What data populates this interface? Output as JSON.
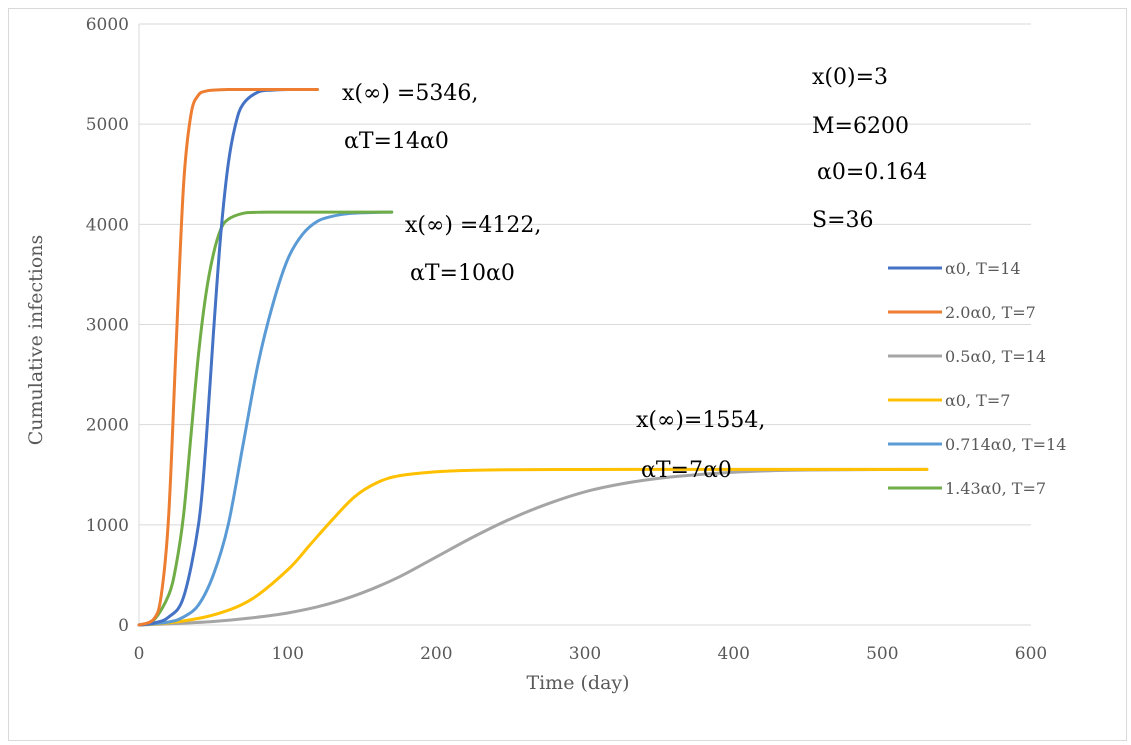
{
  "chart_data": {
    "type": "line",
    "title": "",
    "xlabel": "Time (day)",
    "ylabel": "Cumulative infections",
    "xlim": [
      0,
      600
    ],
    "ylim": [
      0,
      6000
    ],
    "x_ticks": [
      0,
      100,
      200,
      300,
      400,
      500,
      600
    ],
    "y_ticks": [
      0,
      1000,
      2000,
      3000,
      4000,
      5000,
      6000
    ],
    "grid": "horizontal",
    "legend_position": "right",
    "series": [
      {
        "name": "α0, T=14",
        "color": "#4472c4",
        "x": [
          0,
          10,
          20,
          30,
          40,
          45,
          50,
          55,
          60,
          65,
          70,
          80,
          90,
          100,
          120
        ],
        "y": [
          0,
          20,
          80,
          280,
          1000,
          1800,
          2900,
          3900,
          4600,
          5000,
          5200,
          5320,
          5340,
          5346,
          5346
        ]
      },
      {
        "name": "2.0α0, T=7",
        "color": "#ed7d31",
        "x": [
          0,
          10,
          15,
          20,
          25,
          30,
          35,
          40,
          45,
          50,
          60,
          80,
          120
        ],
        "y": [
          0,
          60,
          300,
          1100,
          2800,
          4400,
          5100,
          5290,
          5330,
          5340,
          5346,
          5346,
          5346
        ]
      },
      {
        "name": "0.5α0, T=14",
        "color": "#a5a5a5",
        "x": [
          0,
          25,
          50,
          75,
          100,
          125,
          150,
          175,
          200,
          225,
          250,
          275,
          300,
          325,
          350,
          375,
          400,
          425,
          450,
          500,
          530
        ],
        "y": [
          0,
          15,
          35,
          70,
          120,
          200,
          320,
          480,
          680,
          880,
          1060,
          1210,
          1330,
          1410,
          1465,
          1500,
          1525,
          1540,
          1548,
          1552,
          1554
        ]
      },
      {
        "name": "α0, T=7",
        "color": "#ffc000",
        "x": [
          0,
          25,
          50,
          75,
          100,
          115,
          130,
          145,
          160,
          175,
          200,
          225,
          250,
          300,
          350,
          400,
          450,
          530
        ],
        "y": [
          0,
          30,
          100,
          250,
          550,
          800,
          1050,
          1280,
          1420,
          1490,
          1530,
          1545,
          1550,
          1553,
          1554,
          1554,
          1554,
          1554
        ]
      },
      {
        "name": "0.714α0, T=14",
        "color": "#5b9bd5",
        "x": [
          0,
          20,
          30,
          40,
          50,
          60,
          70,
          80,
          90,
          100,
          110,
          120,
          130,
          140,
          150,
          160,
          170
        ],
        "y": [
          0,
          30,
          80,
          200,
          500,
          1000,
          1800,
          2600,
          3200,
          3650,
          3900,
          4030,
          4080,
          4105,
          4115,
          4120,
          4122
        ]
      },
      {
        "name": "1.43α0, T=7",
        "color": "#70ad47",
        "x": [
          0,
          10,
          20,
          25,
          30,
          35,
          40,
          45,
          50,
          55,
          60,
          70,
          80,
          90,
          100,
          130,
          170
        ],
        "y": [
          0,
          50,
          300,
          600,
          1100,
          1900,
          2700,
          3300,
          3700,
          3950,
          4050,
          4110,
          4120,
          4122,
          4122,
          4122,
          4122
        ]
      }
    ],
    "annotations": [
      {
        "line1": "x(∞) =5346,",
        "line2": "αT=14α0"
      },
      {
        "line1": "x(∞) =4122,",
        "line2": "αT=10α0"
      },
      {
        "line1": "x(∞)=1554,",
        "line2": "αT=7α0"
      }
    ],
    "parameters": [
      "x(0)=3",
      "M=6200",
      "α0=0.164",
      "S=36"
    ]
  }
}
